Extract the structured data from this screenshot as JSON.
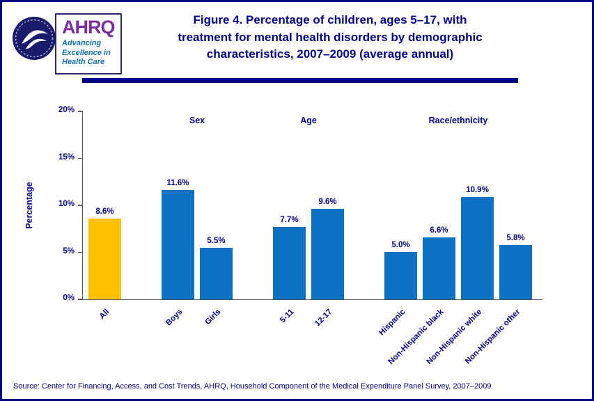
{
  "header": {
    "title_lines": [
      "Figure 4. Percentage of children, ages 5–17, with",
      "treatment for mental health disorders by demographic",
      "characteristics, 2007–2009 (average annual)"
    ],
    "logo": {
      "org": "AHRQ",
      "tagline_lines": [
        "Advancing",
        "Excellence in",
        "Health Care"
      ]
    }
  },
  "chart_data": {
    "type": "bar",
    "title": "Figure 4. Percentage of children, ages 5–17, with treatment for mental health disorders by demographic characteristics, 2007–2009 (average annual)",
    "xlabel": "",
    "ylabel": "Percentage",
    "ylim": [
      0,
      20
    ],
    "yticks": [
      "0%",
      "5%",
      "10%",
      "15%",
      "20%"
    ],
    "grid": false,
    "legend": false,
    "bar_color": "#0E72C4",
    "highlight_color": "#FFC000",
    "groups": [
      {
        "label": "",
        "bars": [
          {
            "category": "All",
            "value": 8.6,
            "label": "8.6%",
            "color": "#FFC000"
          }
        ]
      },
      {
        "label": "Sex",
        "bars": [
          {
            "category": "Boys",
            "value": 11.6,
            "label": "11.6%"
          },
          {
            "category": "Girls",
            "value": 5.5,
            "label": "5.5%"
          }
        ]
      },
      {
        "label": "Age",
        "bars": [
          {
            "category": "5-11",
            "value": 7.7,
            "label": "7.7%"
          },
          {
            "category": "12-17",
            "value": 9.6,
            "label": "9.6%"
          }
        ]
      },
      {
        "label": "Race/ethnicity",
        "bars": [
          {
            "category": "Hispanic",
            "value": 5.0,
            "label": "5.0%"
          },
          {
            "category": "Non-Hispanic black",
            "value": 6.6,
            "label": "6.6%"
          },
          {
            "category": "Non-Hispanic white",
            "value": 10.9,
            "label": "10.9%"
          },
          {
            "category": "Non-Hispanic other",
            "value": 5.8,
            "label": "5.8%"
          }
        ]
      }
    ]
  },
  "footer": {
    "source": "Source: Center for Financing, Access, and Cost Trends, AHRQ, Household Component of the Medical Expenditure Panel Survey, 2007–2009"
  }
}
